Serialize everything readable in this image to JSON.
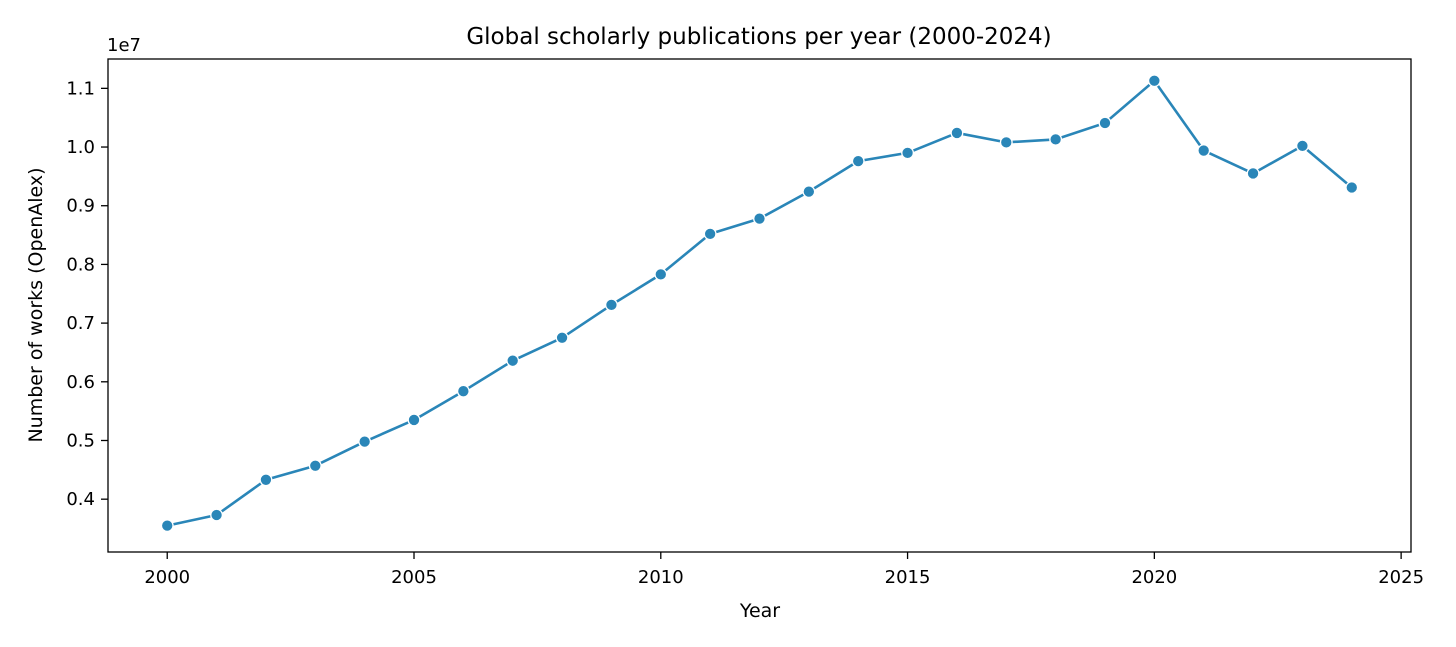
{
  "chart_data": {
    "type": "line",
    "title": "Global scholarly publications per year (2000-2024)",
    "xlabel": "Year",
    "ylabel": "Number of works (OpenAlex)",
    "y_offset_text": "1e7",
    "y_scale_factor": 10000000,
    "xlim": [
      1998.8,
      2025.2
    ],
    "ylim": [
      3100000,
      11500000
    ],
    "xticks": [
      2000,
      2005,
      2010,
      2015,
      2020,
      2025
    ],
    "xtick_labels": [
      "2000",
      "2005",
      "2010",
      "2015",
      "2020",
      "2025"
    ],
    "yticks": [
      4000000,
      5000000,
      6000000,
      7000000,
      8000000,
      9000000,
      10000000,
      11000000
    ],
    "ytick_labels": [
      "0.4",
      "0.5",
      "0.6",
      "0.7",
      "0.8",
      "0.9",
      "1.0",
      "1.1"
    ],
    "grid": false,
    "legend": "none",
    "line_color": "#2a86b8",
    "x": [
      2000,
      2001,
      2002,
      2003,
      2004,
      2005,
      2006,
      2007,
      2008,
      2009,
      2010,
      2011,
      2012,
      2013,
      2014,
      2015,
      2016,
      2017,
      2018,
      2019,
      2020,
      2021,
      2022,
      2023,
      2024
    ],
    "series": [
      {
        "values": [
          3550000,
          3730000,
          4330000,
          4570000,
          4980000,
          5350000,
          5840000,
          6360000,
          6750000,
          7310000,
          7830000,
          8520000,
          8780000,
          9240000,
          9760000,
          9900000,
          10240000,
          10080000,
          10130000,
          10410000,
          11130000,
          9940000,
          9550000,
          10020000,
          9310000
        ]
      }
    ]
  }
}
